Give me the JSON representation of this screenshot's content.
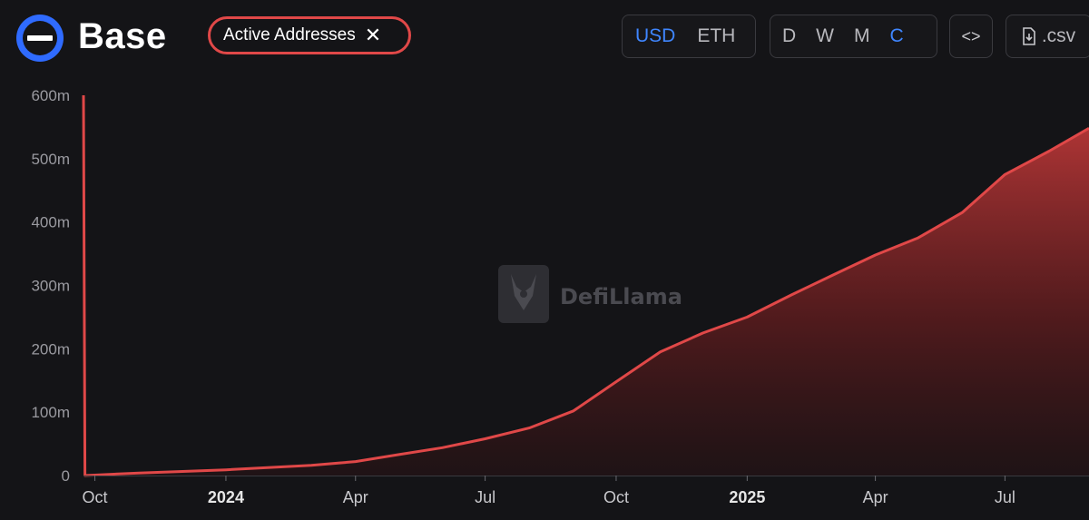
{
  "header": {
    "title": "Base",
    "metric_chip": {
      "label": "Active Addresses",
      "close_glyph": "✕"
    },
    "currency_options": [
      {
        "label": "USD",
        "active": true
      },
      {
        "label": "ETH",
        "active": false
      }
    ],
    "period_options": [
      {
        "label": "D",
        "active": false
      },
      {
        "label": "W",
        "active": false
      },
      {
        "label": "M",
        "active": false
      },
      {
        "label": "C",
        "active": true
      }
    ],
    "embed_glyph": "<>",
    "csv_label": ".csv",
    "icons": {
      "logo": "base-logo-icon",
      "embed": "code-icon",
      "download": "download-icon"
    }
  },
  "colors": {
    "background": "#141417",
    "line": "#e04848",
    "accent": "#3f86ff",
    "axis_text": "#9a9aa0"
  },
  "watermark": "DefiLlama",
  "chart_data": {
    "type": "area",
    "title": "",
    "xlabel": "",
    "ylabel": "",
    "ylim": [
      0,
      600
    ],
    "y_unit": "m",
    "yticks": [
      0,
      100,
      200,
      300,
      400,
      500,
      600
    ],
    "ytick_labels": [
      "0",
      "100m",
      "200m",
      "300m",
      "400m",
      "500m",
      "600m"
    ],
    "xlim": [
      "2023-09-23",
      "2025-08-29"
    ],
    "xticks": [
      {
        "date": "2023-10-01",
        "label": "Oct",
        "bold": false
      },
      {
        "date": "2024-01-01",
        "label": "2024",
        "bold": true
      },
      {
        "date": "2024-04-01",
        "label": "Apr",
        "bold": false
      },
      {
        "date": "2024-07-01",
        "label": "Jul",
        "bold": false
      },
      {
        "date": "2024-10-01",
        "label": "Oct",
        "bold": false
      },
      {
        "date": "2025-01-01",
        "label": "2025",
        "bold": true
      },
      {
        "date": "2025-04-01",
        "label": "Apr",
        "bold": false
      },
      {
        "date": "2025-07-01",
        "label": "Jul",
        "bold": false
      }
    ],
    "grid": false,
    "series": [
      {
        "name": "Active Addresses",
        "points": [
          [
            "2023-09-23",
            600
          ],
          [
            "2023-09-24",
            0
          ],
          [
            "2023-11-01",
            4
          ],
          [
            "2024-01-01",
            9
          ],
          [
            "2024-03-01",
            16
          ],
          [
            "2024-04-01",
            22
          ],
          [
            "2024-05-01",
            33
          ],
          [
            "2024-06-01",
            44
          ],
          [
            "2024-07-01",
            58
          ],
          [
            "2024-08-01",
            75
          ],
          [
            "2024-09-01",
            102
          ],
          [
            "2024-10-01",
            148
          ],
          [
            "2024-11-01",
            195
          ],
          [
            "2024-12-01",
            225
          ],
          [
            "2025-01-01",
            250
          ],
          [
            "2025-02-01",
            285
          ],
          [
            "2025-03-01",
            315
          ],
          [
            "2025-04-01",
            348
          ],
          [
            "2025-05-01",
            375
          ],
          [
            "2025-06-01",
            415
          ],
          [
            "2025-07-01",
            475
          ],
          [
            "2025-08-01",
            512
          ],
          [
            "2025-08-29",
            548
          ]
        ]
      }
    ]
  }
}
